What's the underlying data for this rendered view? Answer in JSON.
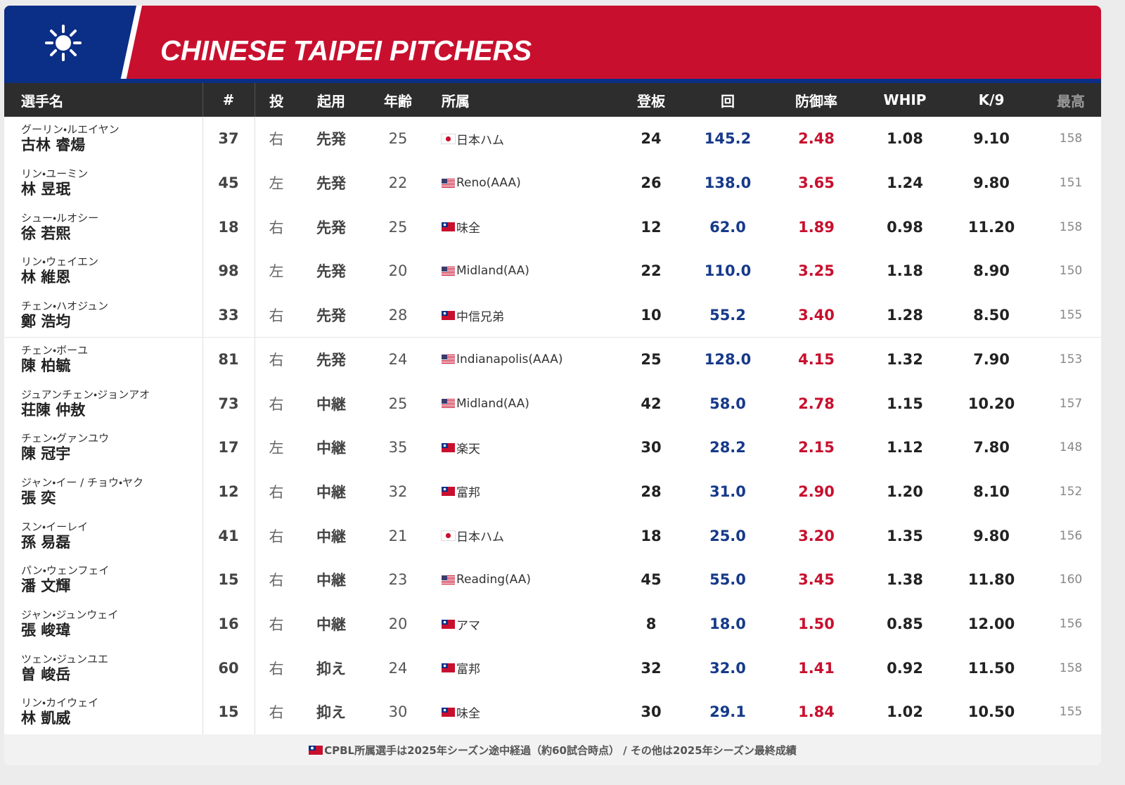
{
  "header": {
    "title": "CHINESE TAIPEI PITCHERS"
  },
  "table": {
    "columns": [
      "選手名",
      "#",
      "投",
      "起用",
      "年齢",
      "所属",
      "登板",
      "回",
      "防御率",
      "WHIP",
      "K/9",
      "最高"
    ],
    "rows": [
      {
        "kana": "グーリン・ルエイヤン",
        "name": "古林 睿煬",
        "number": "37",
        "hand": "右",
        "role": "先発",
        "age": "25",
        "flag": "jp",
        "team": "日本ハム",
        "games": "24",
        "innings": "145.2",
        "era": "2.48",
        "whip": "1.08",
        "k9": "9.10",
        "max": "158"
      },
      {
        "kana": "リン・ユーミン",
        "name": "林 昱珉",
        "number": "45",
        "hand": "左",
        "role": "先発",
        "age": "22",
        "flag": "us",
        "team": "Reno(AAA)",
        "games": "26",
        "innings": "138.0",
        "era": "3.65",
        "whip": "1.24",
        "k9": "9.80",
        "max": "151"
      },
      {
        "kana": "シュー・ルオシー",
        "name": "徐 若熙",
        "number": "18",
        "hand": "右",
        "role": "先発",
        "age": "25",
        "flag": "tw",
        "team": "味全",
        "games": "12",
        "innings": "62.0",
        "era": "1.89",
        "whip": "0.98",
        "k9": "11.20",
        "max": "158"
      },
      {
        "kana": "リン・ウェイエン",
        "name": "林 維恩",
        "number": "98",
        "hand": "左",
        "role": "先発",
        "age": "20",
        "flag": "us",
        "team": "Midland(AA)",
        "games": "22",
        "innings": "110.0",
        "era": "3.25",
        "whip": "1.18",
        "k9": "8.90",
        "max": "150"
      },
      {
        "kana": "チェン・ハオジュン",
        "name": "鄭 浩均",
        "number": "33",
        "hand": "右",
        "role": "先発",
        "age": "28",
        "flag": "tw",
        "team": "中信兄弟",
        "games": "10",
        "innings": "55.2",
        "era": "3.40",
        "whip": "1.28",
        "k9": "8.50",
        "max": "155"
      },
      {
        "kana": "チェン・ボーユ",
        "name": "陳 柏毓",
        "number": "81",
        "hand": "右",
        "role": "先発",
        "age": "24",
        "flag": "us",
        "team": "Indianapolis(AAA)",
        "games": "25",
        "innings": "128.0",
        "era": "4.15",
        "whip": "1.32",
        "k9": "7.90",
        "max": "153"
      },
      {
        "kana": "ジュアンチェン・ジョンアオ",
        "name": "荘陳 仲敖",
        "number": "73",
        "hand": "右",
        "role": "中継",
        "age": "25",
        "flag": "us",
        "team": "Midland(AA)",
        "games": "42",
        "innings": "58.0",
        "era": "2.78",
        "whip": "1.15",
        "k9": "10.20",
        "max": "157"
      },
      {
        "kana": "チェン・グァンユウ",
        "name": "陳 冠宇",
        "number": "17",
        "hand": "左",
        "role": "中継",
        "age": "35",
        "flag": "tw",
        "team": "楽天",
        "games": "30",
        "innings": "28.2",
        "era": "2.15",
        "whip": "1.12",
        "k9": "7.80",
        "max": "148"
      },
      {
        "kana": "ジャン・イー / チョウ・ヤク",
        "name": "張 奕",
        "number": "12",
        "hand": "右",
        "role": "中継",
        "age": "32",
        "flag": "tw",
        "team": "富邦",
        "games": "28",
        "innings": "31.0",
        "era": "2.90",
        "whip": "1.20",
        "k9": "8.10",
        "max": "152"
      },
      {
        "kana": "スン・イーレイ",
        "name": "孫 易磊",
        "number": "41",
        "hand": "右",
        "role": "中継",
        "age": "21",
        "flag": "jp",
        "team": "日本ハム",
        "games": "18",
        "innings": "25.0",
        "era": "3.20",
        "whip": "1.35",
        "k9": "9.80",
        "max": "156"
      },
      {
        "kana": "パン・ウェンフェイ",
        "name": "潘 文輝",
        "number": "15",
        "hand": "右",
        "role": "中継",
        "age": "23",
        "flag": "us",
        "team": "Reading(AA)",
        "games": "45",
        "innings": "55.0",
        "era": "3.45",
        "whip": "1.38",
        "k9": "11.80",
        "max": "160"
      },
      {
        "kana": "ジャン・ジュンウェイ",
        "name": "張 峻瑋",
        "number": "16",
        "hand": "右",
        "role": "中継",
        "age": "20",
        "flag": "tw",
        "team": "アマ",
        "games": "8",
        "innings": "18.0",
        "era": "1.50",
        "whip": "0.85",
        "k9": "12.00",
        "max": "156"
      },
      {
        "kana": "ツェン・ジュンユエ",
        "name": "曽 峻岳",
        "number": "60",
        "hand": "右",
        "role": "抑え",
        "age": "24",
        "flag": "tw",
        "team": "富邦",
        "games": "32",
        "innings": "32.0",
        "era": "1.41",
        "whip": "0.92",
        "k9": "11.50",
        "max": "158"
      },
      {
        "kana": "リン・カイウェイ",
        "name": "林 凱威",
        "number": "15",
        "hand": "右",
        "role": "抑え",
        "age": "30",
        "flag": "tw",
        "team": "味全",
        "games": "30",
        "innings": "29.1",
        "era": "1.84",
        "whip": "1.02",
        "k9": "10.50",
        "max": "155"
      }
    ]
  },
  "footer": {
    "note": "CPBL所属選手は2025年シーズン途中経過（約60試合時点） / その他は2025年シーズン最終成績"
  }
}
